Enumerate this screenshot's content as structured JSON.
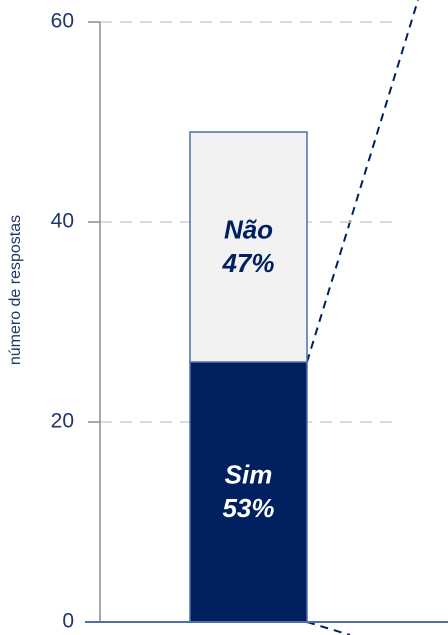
{
  "chart_data": {
    "type": "stacked-bar",
    "y_label": "número de respostas",
    "categories": [
      null
    ],
    "series": [
      {
        "name": "Sim",
        "color": "#002060",
        "label_color": "#ffffff",
        "values": [
          26
        ],
        "label": "53%"
      },
      {
        "name": "Não",
        "color": "#f2f2f2",
        "label_color": "#002060",
        "values": [
          23
        ],
        "label": "47%"
      }
    ],
    "ylim": [
      0,
      60
    ],
    "yticks": [
      0,
      20,
      40,
      60
    ],
    "grid": true
  }
}
